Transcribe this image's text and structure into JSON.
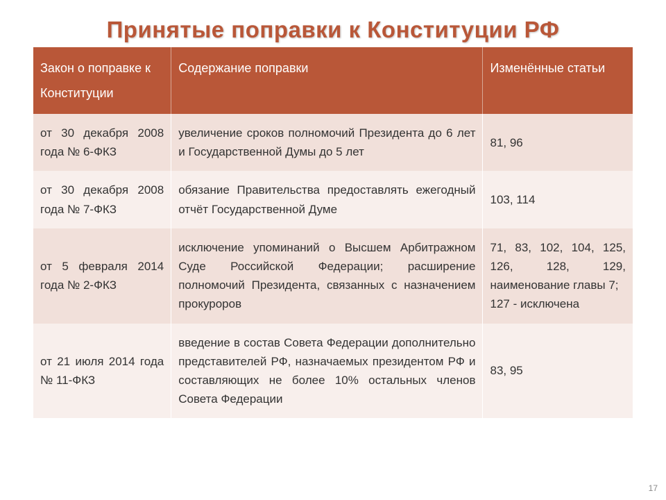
{
  "title": "Принятые поправки к Конституции РФ",
  "columns": {
    "law": "Закон о поправке к Конституции",
    "desc": "Содержание поправки",
    "articles": "Изменённые статьи"
  },
  "rows": [
    {
      "law": "от 30 декабря 2008 года № 6-ФКЗ",
      "desc": "увеличение сроков полномочий Президента до 6 лет и Государственной Думы до 5 лет",
      "articles": "81, 96"
    },
    {
      "law": "от 30 декабря 2008 года № 7-ФКЗ",
      "desc": "обязание Правительства предоставлять ежегодный отчёт Государственной Думе",
      "articles": "103, 114"
    },
    {
      "law": "от 5 февраля 2014 года № 2-ФКЗ",
      "desc": "исключение упоминаний о Высшем Арбитражном Суде Российской Федерации; расширение полномочий Президента, связанных с назначением прокуроров",
      "articles": "71, 83, 102, 104, 125, 126, 128, 129, наименование главы 7;\n127 - исключена"
    },
    {
      "law": "от 21 июля 2014 года № 11-ФКЗ",
      "desc": "введение в состав Совета Федерации дополнительно представителей РФ, назначаемых президентом РФ и составляющих не более 10% остальных членов Совета Федерации",
      "articles": "83, 95"
    }
  ],
  "page_number": "17",
  "style": {
    "header_bg": "#b95738",
    "header_text": "#ffffff",
    "row_odd_bg": "#f1e0da",
    "row_even_bg": "#f8efec",
    "title_color": "#b95738",
    "body_text": "#333333",
    "title_fontsize": 33,
    "header_fontsize": 18,
    "cell_fontsize": 17
  }
}
